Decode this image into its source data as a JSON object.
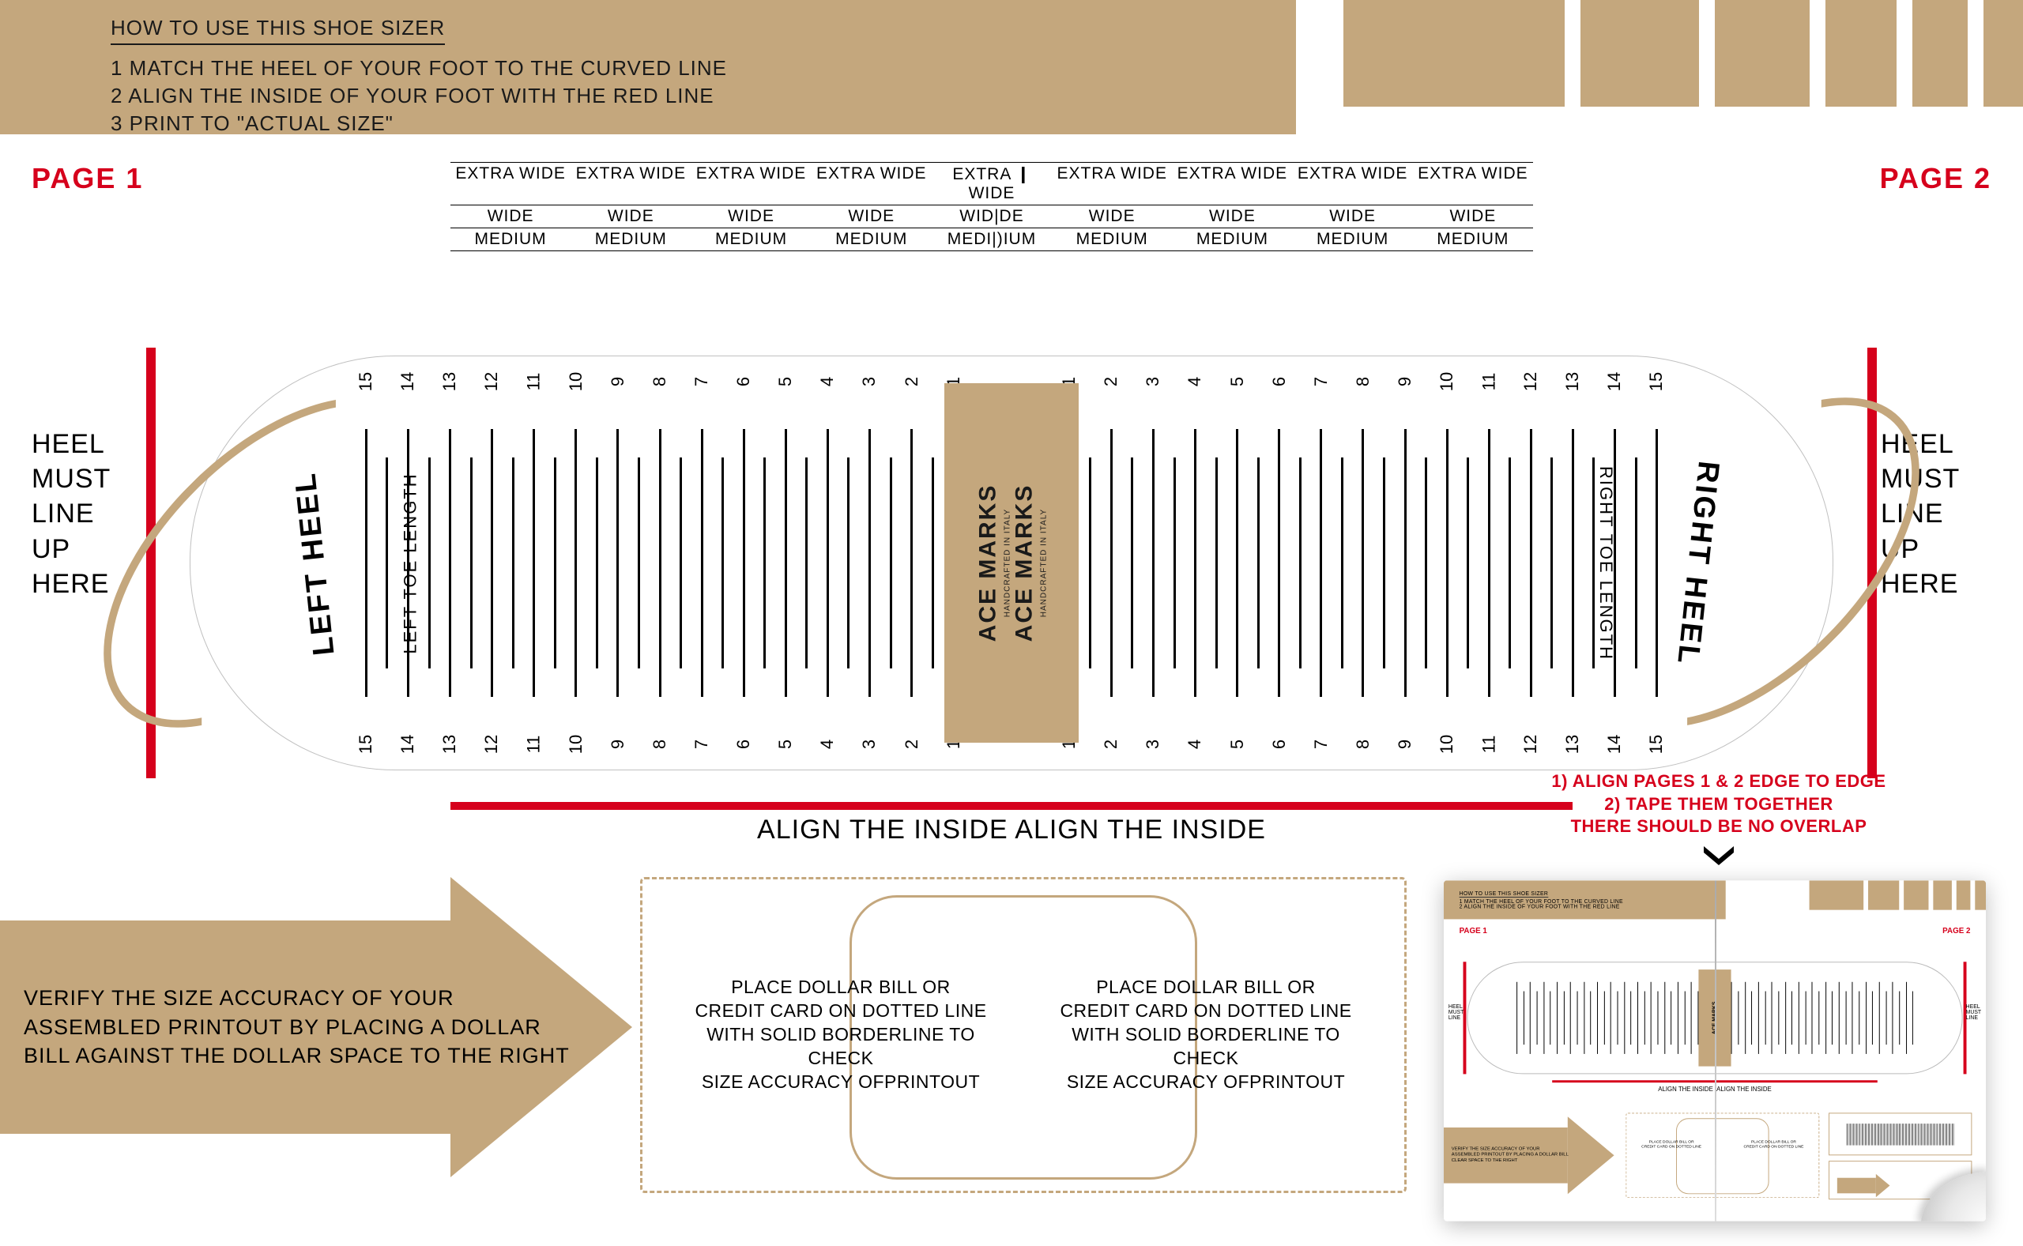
{
  "colors": {
    "tan": "#c4a77d",
    "red": "#d6001c",
    "text": "#1a1a1a"
  },
  "header": {
    "title": "HOW TO USE THIS SHOE SIZER",
    "step1": "1 MATCH THE HEEL OF YOUR FOOT TO THE CURVED LINE",
    "step2": "2 ALIGN THE INSIDE OF YOUR FOOT WITH THE RED LINE",
    "step3": "3 PRINT TO \"ACTUAL SIZE\""
  },
  "top_right_block_widths": [
    280,
    150,
    120,
    90,
    70,
    50
  ],
  "page1": "PAGE 1",
  "page2": "PAGE 2",
  "width_labels": {
    "rows": [
      "EXTRA WIDE",
      "WIDE",
      "MEDIUM"
    ],
    "columns": 9,
    "special_col5": [
      "EXTRA ❙ WIDE",
      "WID|DE",
      "MEDI|)IUM"
    ]
  },
  "heel_text": "HEEL\nMUST\nLINE\nUP\nHERE",
  "heel_label_left": "LEFT HEEL",
  "heel_label_right": "RIGHT HEEL",
  "toe_len_left": "LEFT TOE LENGTH",
  "toe_len_right": "RIGHT TOE LENGTH",
  "sizes": [
    1,
    2,
    3,
    4,
    5,
    6,
    7,
    8,
    9,
    10,
    11,
    12,
    13,
    14,
    15
  ],
  "brand": "ACE MARKS",
  "brand_sub": "HANDCRAFTED IN ITALY",
  "align_inside": "ALIGN THE INSIDE  ALIGN THE INSIDE",
  "arrow_text": "VERIFY THE SIZE ACCURACY OF YOUR ASSEMBLED PRINTOUT BY PLACING A DOLLAR BILL AGAINST THE DOLLAR SPACE TO THE RIGHT",
  "verify_text": "PLACE DOLLAR BILL OR\nCREDIT CARD ON DOTTED LINE\nWITH SOLID BORDERLINE TO CHECK\nSIZE ACCURACY OFPRINTOUT",
  "assembly": {
    "line1": "1) ALIGN PAGES 1 & 2 EDGE TO EDGE",
    "line2": "2) TAPE THEM TOGETHER",
    "line3": "THERE SHOULD BE NO OVERLAP"
  }
}
